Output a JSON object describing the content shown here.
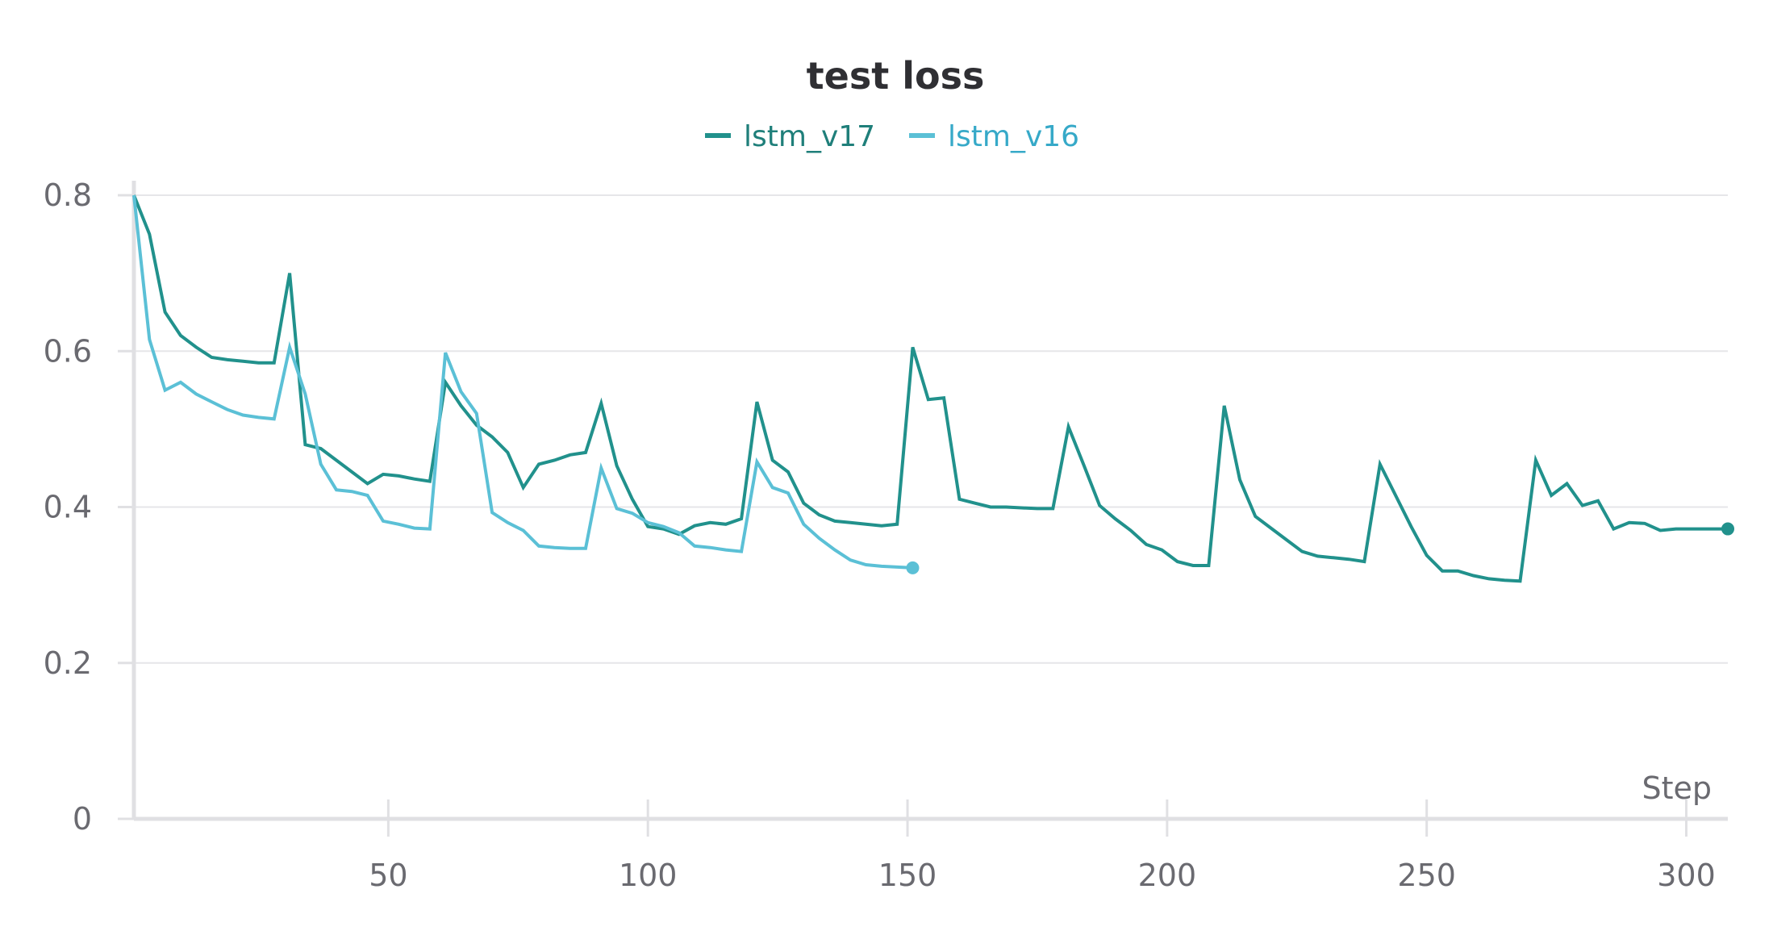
{
  "chart_data": {
    "type": "line",
    "title": "test loss",
    "xlabel": "Step",
    "ylabel": "",
    "xlim": [
      1,
      308
    ],
    "ylim": [
      0,
      0.8
    ],
    "x_ticks": [
      50,
      100,
      150,
      200,
      250,
      300
    ],
    "y_ticks": [
      0,
      0.2,
      0.4,
      0.6,
      0.8
    ],
    "y_tick_labels": [
      "0",
      "0.2",
      "0.4",
      "0.6",
      "0.8"
    ],
    "grid": true,
    "legend_position": "top-center",
    "series": [
      {
        "name": "lstm_v17",
        "color": "#21918c",
        "end_marker": true,
        "points": [
          [
            1,
            0.8
          ],
          [
            4,
            0.75
          ],
          [
            7,
            0.65
          ],
          [
            10,
            0.62
          ],
          [
            13,
            0.605
          ],
          [
            16,
            0.592
          ],
          [
            19,
            0.589
          ],
          [
            22,
            0.587
          ],
          [
            25,
            0.585
          ],
          [
            28,
            0.585
          ],
          [
            31,
            0.7
          ],
          [
            34,
            0.48
          ],
          [
            37,
            0.475
          ],
          [
            40,
            0.46
          ],
          [
            43,
            0.445
          ],
          [
            46,
            0.43
          ],
          [
            49,
            0.442
          ],
          [
            52,
            0.44
          ],
          [
            55,
            0.436
          ],
          [
            58,
            0.433
          ],
          [
            61,
            0.56
          ],
          [
            64,
            0.53
          ],
          [
            67,
            0.505
          ],
          [
            70,
            0.49
          ],
          [
            73,
            0.47
          ],
          [
            76,
            0.425
          ],
          [
            79,
            0.455
          ],
          [
            82,
            0.46
          ],
          [
            85,
            0.467
          ],
          [
            88,
            0.47
          ],
          [
            91,
            0.533
          ],
          [
            94,
            0.453
          ],
          [
            97,
            0.41
          ],
          [
            100,
            0.375
          ],
          [
            103,
            0.372
          ],
          [
            106,
            0.365
          ],
          [
            109,
            0.376
          ],
          [
            112,
            0.38
          ],
          [
            115,
            0.378
          ],
          [
            118,
            0.385
          ],
          [
            121,
            0.535
          ],
          [
            124,
            0.46
          ],
          [
            127,
            0.445
          ],
          [
            130,
            0.405
          ],
          [
            133,
            0.39
          ],
          [
            136,
            0.382
          ],
          [
            139,
            0.38
          ],
          [
            142,
            0.378
          ],
          [
            145,
            0.376
          ],
          [
            148,
            0.378
          ],
          [
            151,
            0.605
          ],
          [
            154,
            0.538
          ],
          [
            157,
            0.54
          ],
          [
            160,
            0.41
          ],
          [
            163,
            0.405
          ],
          [
            166,
            0.4
          ],
          [
            169,
            0.4
          ],
          [
            172,
            0.399
          ],
          [
            175,
            0.398
          ],
          [
            178,
            0.398
          ],
          [
            181,
            0.503
          ],
          [
            184,
            0.453
          ],
          [
            187,
            0.402
          ],
          [
            190,
            0.385
          ],
          [
            193,
            0.37
          ],
          [
            196,
            0.352
          ],
          [
            199,
            0.345
          ],
          [
            202,
            0.33
          ],
          [
            205,
            0.325
          ],
          [
            208,
            0.325
          ],
          [
            211,
            0.53
          ],
          [
            214,
            0.435
          ],
          [
            217,
            0.388
          ],
          [
            220,
            0.373
          ],
          [
            223,
            0.358
          ],
          [
            226,
            0.343
          ],
          [
            229,
            0.337
          ],
          [
            232,
            0.335
          ],
          [
            235,
            0.333
          ],
          [
            238,
            0.33
          ],
          [
            241,
            0.455
          ],
          [
            244,
            0.415
          ],
          [
            247,
            0.375
          ],
          [
            250,
            0.338
          ],
          [
            253,
            0.318
          ],
          [
            256,
            0.318
          ],
          [
            259,
            0.312
          ],
          [
            262,
            0.308
          ],
          [
            265,
            0.306
          ],
          [
            268,
            0.305
          ],
          [
            271,
            0.46
          ],
          [
            274,
            0.415
          ],
          [
            277,
            0.43
          ],
          [
            280,
            0.402
          ],
          [
            283,
            0.408
          ],
          [
            286,
            0.372
          ],
          [
            289,
            0.38
          ],
          [
            292,
            0.379
          ],
          [
            295,
            0.37
          ],
          [
            298,
            0.372
          ],
          [
            308,
            0.372
          ]
        ]
      },
      {
        "name": "lstm_v16",
        "color": "#5bc0d6",
        "end_marker": true,
        "points": [
          [
            1,
            0.8
          ],
          [
            4,
            0.615
          ],
          [
            7,
            0.55
          ],
          [
            10,
            0.56
          ],
          [
            13,
            0.545
          ],
          [
            16,
            0.535
          ],
          [
            19,
            0.525
          ],
          [
            22,
            0.518
          ],
          [
            25,
            0.515
          ],
          [
            28,
            0.513
          ],
          [
            31,
            0.605
          ],
          [
            34,
            0.545
          ],
          [
            37,
            0.455
          ],
          [
            40,
            0.422
          ],
          [
            43,
            0.42
          ],
          [
            46,
            0.415
          ],
          [
            49,
            0.382
          ],
          [
            52,
            0.378
          ],
          [
            55,
            0.373
          ],
          [
            58,
            0.372
          ],
          [
            61,
            0.598
          ],
          [
            64,
            0.548
          ],
          [
            67,
            0.52
          ],
          [
            70,
            0.393
          ],
          [
            73,
            0.38
          ],
          [
            76,
            0.37
          ],
          [
            79,
            0.35
          ],
          [
            82,
            0.348
          ],
          [
            85,
            0.347
          ],
          [
            88,
            0.347
          ],
          [
            91,
            0.45
          ],
          [
            94,
            0.398
          ],
          [
            97,
            0.392
          ],
          [
            100,
            0.38
          ],
          [
            103,
            0.375
          ],
          [
            106,
            0.367
          ],
          [
            109,
            0.35
          ],
          [
            112,
            0.348
          ],
          [
            115,
            0.345
          ],
          [
            118,
            0.343
          ],
          [
            121,
            0.458
          ],
          [
            124,
            0.425
          ],
          [
            127,
            0.418
          ],
          [
            130,
            0.378
          ],
          [
            133,
            0.36
          ],
          [
            136,
            0.345
          ],
          [
            139,
            0.332
          ],
          [
            142,
            0.326
          ],
          [
            145,
            0.324
          ],
          [
            148,
            0.323
          ],
          [
            151,
            0.322
          ]
        ]
      }
    ]
  }
}
